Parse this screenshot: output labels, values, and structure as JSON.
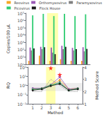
{
  "chart_data": [
    {
      "type": "bar",
      "x": [
        1,
        2,
        3,
        4,
        5,
        6
      ],
      "xlim": [
        0.45,
        6.55
      ],
      "ylabel": "Copies/100 µL",
      "log": "y",
      "ylim": [
        1,
        10000000
      ],
      "yticks": [
        {
          "value": 1,
          "label": "10⁰"
        },
        {
          "value": 10,
          "label": "10¹"
        },
        {
          "value": 100,
          "label": "10²"
        },
        {
          "value": 1000,
          "label": "10³"
        },
        {
          "value": 10000,
          "label": "10⁴"
        },
        {
          "value": 100000,
          "label": "10⁵"
        },
        {
          "value": 1000000,
          "label": "10⁶"
        },
        {
          "value": 10000000,
          "label": "10⁷"
        }
      ],
      "tick_labels": "y",
      "grid": false,
      "legend": "upper right",
      "highlight": {
        "range": [
          2.48,
          3.52
        ],
        "color": "#ffffa0"
      },
      "series": [
        {
          "name": "Reovirus",
          "color": "#f5a623",
          "values": [
            3,
            15,
            3,
            5,
            3,
            3
          ]
        },
        {
          "name": "Orthomyxovirus",
          "color": "#9b59b6",
          "values": [
            200,
            250,
            200,
            350,
            180,
            220
          ]
        },
        {
          "name": "Paramyxovirus",
          "color": "#808080",
          "values": [
            80,
            120,
            40,
            120,
            80,
            60
          ]
        },
        {
          "name": "Picovirus",
          "color": "#2ecc71",
          "values": [
            5000000,
            8000000,
            4000000,
            8000000,
            4000000,
            7000000
          ]
        },
        {
          "name": "Flock House",
          "color": "#1a1a1a",
          "values": [
            150,
            220,
            25,
            250,
            120,
            130
          ]
        }
      ]
    },
    {
      "type": "line",
      "x": [
        1,
        2,
        3,
        4,
        5,
        6
      ],
      "xlabel": "Method",
      "xlim": [
        0.45,
        6.55
      ],
      "xticks": [
        1,
        2,
        3,
        4,
        5,
        6
      ],
      "ylabel": "RQ",
      "log": "y",
      "ylim": [
        0.01,
        100
      ],
      "yticks": [
        {
          "value": 0.01,
          "label": "10⁻²"
        },
        {
          "value": 0.1,
          "label": "10⁻¹"
        },
        {
          "value": 1,
          "label": "10⁰"
        },
        {
          "value": 10,
          "label": "10¹"
        },
        {
          "value": 100,
          "label": "10²"
        }
      ],
      "y2label": "Method Score",
      "y2lim": [
        1,
        4
      ],
      "y2ticks": [
        1,
        2,
        3,
        4
      ],
      "grid": false,
      "highlight": {
        "range": [
          2.48,
          3.52
        ],
        "color": "#ffffa0"
      },
      "band": {
        "range": [
          0.25,
          1.8
        ],
        "color": "#cccccc"
      },
      "series": [
        {
          "name": "Reovirus",
          "color": "#f5a623",
          "marker": "circle",
          "line_style": "solid",
          "values": [
            0.4,
            0.5,
            1.0,
            4.0,
            0.4,
            0.5
          ]
        },
        {
          "name": "Orthomyxovirus",
          "color": "#9b59b6",
          "marker": "circle",
          "line_style": "solid",
          "values": [
            0.5,
            0.5,
            1.2,
            8.0,
            0.4,
            0.5
          ]
        },
        {
          "name": "Paramyxovirus",
          "color": "#808080",
          "marker": "circle",
          "line_style": "solid",
          "values": [
            0.4,
            0.4,
            0.9,
            2.5,
            0.3,
            0.4
          ]
        },
        {
          "name": "Picovirus",
          "color": "#2ecc71",
          "marker": "circle",
          "line_style": "solid",
          "values": [
            0.35,
            0.45,
            1.1,
            1.8,
            0.3,
            0.45
          ]
        },
        {
          "name": "Flock House",
          "color": "#1a1a1a",
          "marker": "circle",
          "line_style": "solid",
          "values": [
            0.3,
            0.4,
            0.9,
            1.5,
            0.3,
            0.4
          ]
        },
        {
          "type": "scatter",
          "color": "red",
          "marker": "star",
          "x": [
            3,
            4
          ],
          "values": [
            80,
            15
          ]
        },
        {
          "type": "line",
          "axis": "y2",
          "color": "#888888",
          "marker": "none",
          "line_style": "dotted",
          "values": [
            2.0,
            2.0,
            3.0,
            2.5,
            2.0,
            2.0
          ]
        }
      ]
    }
  ]
}
